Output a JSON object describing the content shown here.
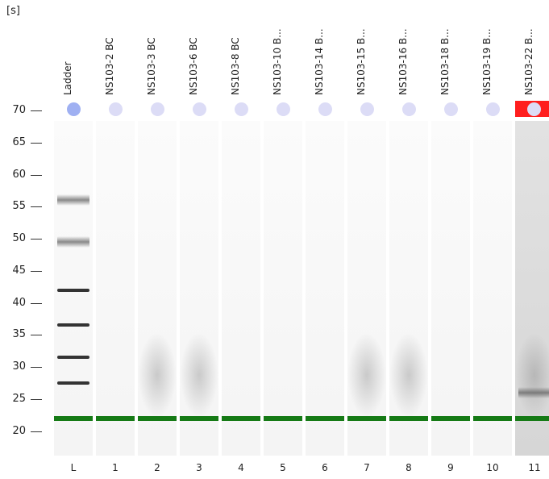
{
  "unit_label": "[s]",
  "y_axis": {
    "ticks": [
      "70",
      "65",
      "60",
      "55",
      "50",
      "45",
      "40",
      "35",
      "30",
      "25",
      "20"
    ]
  },
  "lanes": [
    {
      "sample": "Ladder",
      "number": "L",
      "ladder": true,
      "bands": [
        {
          "s": 56,
          "soft": true
        },
        {
          "s": 49.5,
          "soft": true
        },
        {
          "s": 42
        },
        {
          "s": 36.5
        },
        {
          "s": 31.5
        },
        {
          "s": 27.5
        }
      ]
    },
    {
      "sample": "NS103-2 BC",
      "number": "1"
    },
    {
      "sample": "NS103-3 BC",
      "number": "2",
      "smear": true
    },
    {
      "sample": "NS103-6 BC",
      "number": "3",
      "smear": true
    },
    {
      "sample": "NS103-8 BC",
      "number": "4"
    },
    {
      "sample": "NS103-10 B...",
      "number": "5"
    },
    {
      "sample": "NS103-14 B...",
      "number": "6"
    },
    {
      "sample": "NS103-15 B...",
      "number": "7",
      "smear": true
    },
    {
      "sample": "NS103-16 B...",
      "number": "8",
      "smear": true
    },
    {
      "sample": "NS103-18 B...",
      "number": "9"
    },
    {
      "sample": "NS103-19 B...",
      "number": "10"
    },
    {
      "sample": "NS103-22 B...",
      "number": "11",
      "flagged": true,
      "smear": true,
      "bands": [
        {
          "s": 26,
          "soft": true
        }
      ]
    }
  ],
  "marker_s": 22,
  "colors": {
    "marker": "#157a15",
    "flag": "#ff1e1e",
    "ladder_dot": "#9fb0f2",
    "dot": "#dcdcf6"
  }
}
